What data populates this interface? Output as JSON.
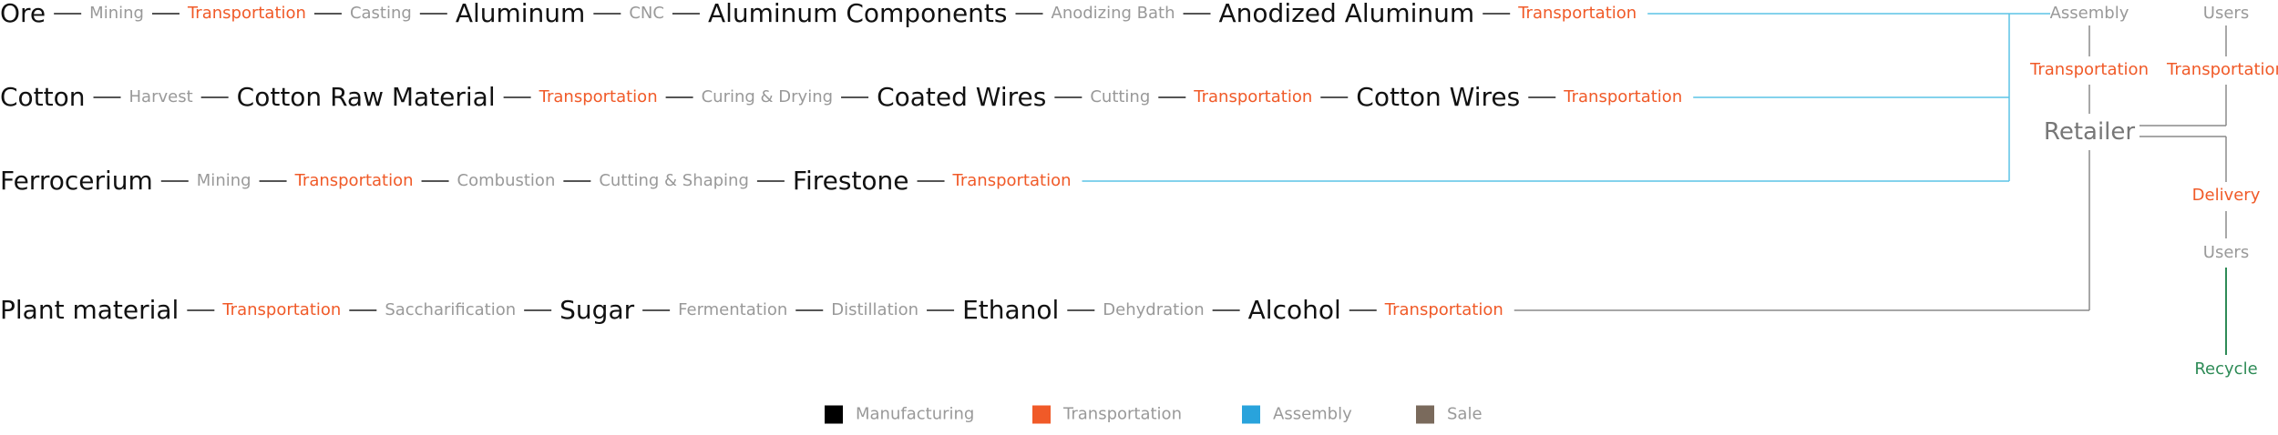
{
  "rows": [
    [
      {
        "text": "Ore",
        "kind": "big"
      },
      {
        "text": "Mining",
        "kind": "small"
      },
      {
        "text": "Transportation",
        "kind": "orange"
      },
      {
        "text": "Casting",
        "kind": "small"
      },
      {
        "text": "Aluminum",
        "kind": "big"
      },
      {
        "text": "CNC",
        "kind": "small"
      },
      {
        "text": "Aluminum Components",
        "kind": "big"
      },
      {
        "text": "Anodizing Bath",
        "kind": "small"
      },
      {
        "text": "Anodized Aluminum",
        "kind": "big"
      },
      {
        "text": "Transportation",
        "kind": "orange"
      }
    ],
    [
      {
        "text": "Cotton",
        "kind": "big"
      },
      {
        "text": "Harvest",
        "kind": "small"
      },
      {
        "text": "Cotton Raw Material",
        "kind": "big"
      },
      {
        "text": "Transportation",
        "kind": "orange"
      },
      {
        "text": "Curing & Drying",
        "kind": "small"
      },
      {
        "text": "Coated Wires",
        "kind": "big"
      },
      {
        "text": "Cutting",
        "kind": "small"
      },
      {
        "text": "Transportation",
        "kind": "orange"
      },
      {
        "text": "Cotton Wires",
        "kind": "big"
      },
      {
        "text": "Transportation",
        "kind": "orange"
      }
    ],
    [
      {
        "text": "Ferrocerium",
        "kind": "big"
      },
      {
        "text": "Mining",
        "kind": "small"
      },
      {
        "text": "Transportation",
        "kind": "orange"
      },
      {
        "text": "Combustion",
        "kind": "small"
      },
      {
        "text": "Cutting & Shaping",
        "kind": "small"
      },
      {
        "text": "Firestone",
        "kind": "big"
      },
      {
        "text": "Transportation",
        "kind": "orange"
      }
    ],
    [
      {
        "text": "Plant material",
        "kind": "big"
      },
      {
        "text": "Transportation",
        "kind": "orange"
      },
      {
        "text": "Saccharification",
        "kind": "small"
      },
      {
        "text": "Sugar",
        "kind": "big"
      },
      {
        "text": "Fermentation",
        "kind": "small"
      },
      {
        "text": "Distillation",
        "kind": "small"
      },
      {
        "text": "Ethanol",
        "kind": "big"
      },
      {
        "text": "Dehydration",
        "kind": "small"
      },
      {
        "text": "Alcohol",
        "kind": "big"
      },
      {
        "text": "Transportation",
        "kind": "orange"
      }
    ]
  ],
  "right_nodes": {
    "assembly": "Assembly",
    "assembly_transport": "Transportation",
    "retailer": "Retailer",
    "users_top": "Users",
    "users_transport": "Transportation",
    "delivery": "Delivery",
    "users_mid": "Users",
    "recycle": "Recycle"
  },
  "legend": [
    {
      "label": "Manufacturing",
      "color": "#000000"
    },
    {
      "label": "Transportation",
      "color": "#f05a28"
    },
    {
      "label": "Assembly",
      "color": "#29a3dc"
    },
    {
      "label": "Sale",
      "color": "#7a6a5c"
    }
  ],
  "colors": {
    "assembly_line": "#5bc4e6",
    "sale_line": "#8a8a8a",
    "recycle_line": "#2e8b57"
  }
}
